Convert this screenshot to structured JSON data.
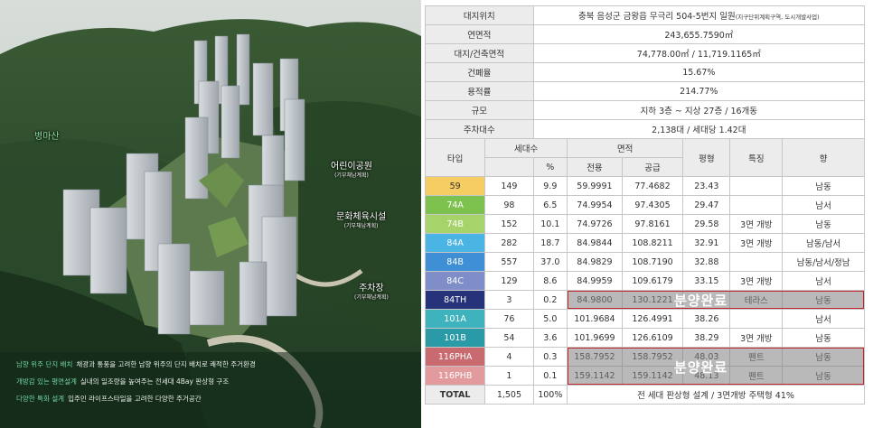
{
  "render": {
    "labels": [
      {
        "title": "병마산",
        "sub": ""
      },
      {
        "title": "어린이공원",
        "sub": "(기부채납계획)"
      },
      {
        "title": "문화체육시설",
        "sub": "(기부채납계획)"
      },
      {
        "title": "주차장",
        "sub": "(기부채납계획)"
      }
    ],
    "features": [
      {
        "tag": "남향 위주 단지 배치",
        "text": "채광과 통풍을 고려한 남향 위주의 단지 배치로 쾌적한 주거환경"
      },
      {
        "tag": "개방감 있는 평면설계",
        "text": "실내의 일조량을 높여주는 전세대 4Bay 판상형 구조"
      },
      {
        "tag": "다양한 특화 설계",
        "text": "입주민 라이프스타일을 고려한 다양한 주거공간"
      }
    ]
  },
  "summary": [
    {
      "k": "대지위치",
      "v": "충북 음성군 금왕읍 무극리 504-5번지 일원",
      "note": "(지구단위계획구역, 도시개발사업)"
    },
    {
      "k": "연면적",
      "v": "243,655.7590㎡",
      "note": ""
    },
    {
      "k": "대지/건축면적",
      "v": "74,778.00㎡ / 11,719.1165㎡",
      "note": ""
    },
    {
      "k": "건폐율",
      "v": "15.67%",
      "note": ""
    },
    {
      "k": "용적률",
      "v": "214.77%",
      "note": ""
    },
    {
      "k": "규모",
      "v": "지하 3층 ~ 지상 27층 / 16개동",
      "note": ""
    },
    {
      "k": "주차대수",
      "v": "2,138대 / 세대당 1.42대",
      "note": ""
    }
  ],
  "header": {
    "type": "타입",
    "households": "세대수",
    "pct": "%",
    "area": "면적",
    "exclusive": "전용",
    "supply": "공급",
    "pyeong": "평형",
    "feature": "특징",
    "direction": "향"
  },
  "rows": [
    {
      "type": "59",
      "count": "149",
      "pct": "9.9",
      "ex": "59.9991",
      "sup": "77.4682",
      "py": "23.43",
      "feat": "",
      "dir": "남동",
      "color": "#f6cd62",
      "fg": "#333333"
    },
    {
      "type": "74A",
      "count": "98",
      "pct": "6.5",
      "ex": "74.9954",
      "sup": "97.4305",
      "py": "29.47",
      "feat": "",
      "dir": "남서",
      "color": "#7dc24f",
      "fg": "#ffffff"
    },
    {
      "type": "74B",
      "count": "152",
      "pct": "10.1",
      "ex": "74.9726",
      "sup": "97.8161",
      "py": "29.58",
      "feat": "3면 개방",
      "dir": "남동",
      "color": "#a6d46a",
      "fg": "#ffffff"
    },
    {
      "type": "84A",
      "count": "282",
      "pct": "18.7",
      "ex": "84.9844",
      "sup": "108.8211",
      "py": "32.91",
      "feat": "3면 개방",
      "dir": "남동/남서",
      "color": "#4ab4e4",
      "fg": "#ffffff"
    },
    {
      "type": "84B",
      "count": "557",
      "pct": "37.0",
      "ex": "84.9829",
      "sup": "108.7190",
      "py": "32.88",
      "feat": "",
      "dir": "남동/남서/정남",
      "color": "#3f8fd6",
      "fg": "#ffffff"
    },
    {
      "type": "84C",
      "count": "129",
      "pct": "8.6",
      "ex": "84.9959",
      "sup": "109.6179",
      "py": "33.15",
      "feat": "3면 개방",
      "dir": "남서",
      "color": "#7f8ec9",
      "fg": "#ffffff"
    },
    {
      "type": "84TH",
      "count": "3",
      "pct": "0.2",
      "ex": "84.9800",
      "sup": "130.1221",
      "py": "",
      "feat": "테라스",
      "dir": "남동",
      "color": "#26337a",
      "fg": "#ffffff"
    },
    {
      "type": "101A",
      "count": "76",
      "pct": "5.0",
      "ex": "101.9684",
      "sup": "126.4991",
      "py": "38.26",
      "feat": "",
      "dir": "남서",
      "color": "#3fb3bd",
      "fg": "#ffffff"
    },
    {
      "type": "101B",
      "count": "54",
      "pct": "3.6",
      "ex": "101.9699",
      "sup": "126.6109",
      "py": "38.29",
      "feat": "3면 개방",
      "dir": "남동",
      "color": "#2a9aa6",
      "fg": "#ffffff"
    },
    {
      "type": "116PHA",
      "count": "4",
      "pct": "0.3",
      "ex": "158.7952",
      "sup": "158.7952",
      "py": "48.03",
      "feat": "펜트",
      "dir": "남동",
      "color": "#c86a6f",
      "fg": "#ffffff"
    },
    {
      "type": "116PHB",
      "count": "1",
      "pct": "0.1",
      "ex": "159.1142",
      "sup": "159.1142",
      "py": "48.13",
      "feat": "펜트",
      "dir": "남동",
      "color": "#e39a9d",
      "fg": "#ffffff"
    }
  ],
  "total": {
    "label": "TOTAL",
    "count": "1,505",
    "pct": "100%",
    "note": "전 세대 판상형 설계 / 3면개방 주택형 41%"
  },
  "stamps": [
    "분양완료",
    "분양완료"
  ]
}
